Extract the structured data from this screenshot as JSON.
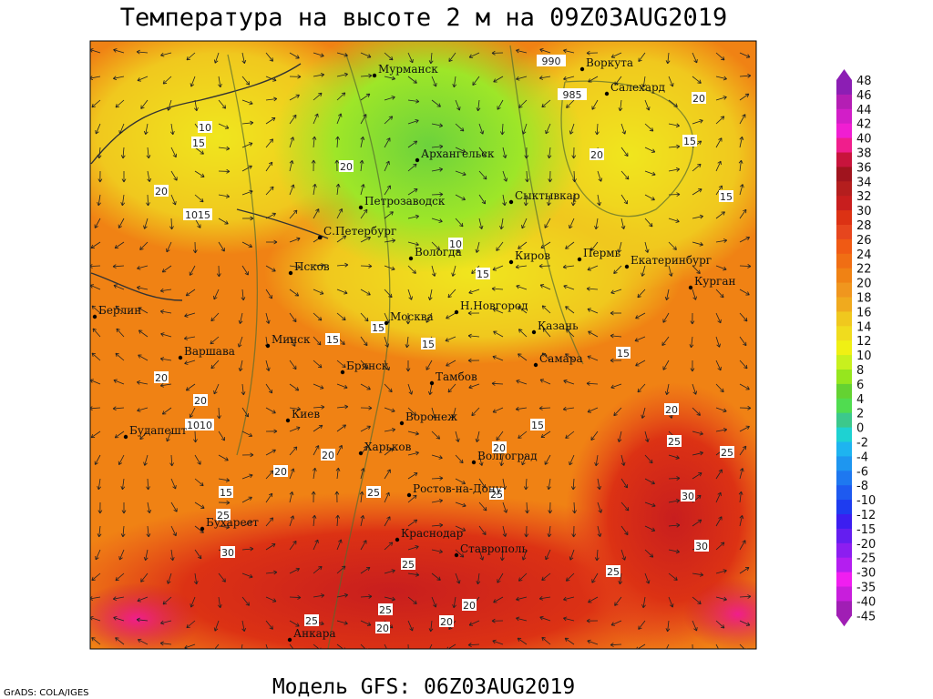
{
  "title": "Температура на высоте 2 м на 09Z03AUG2019",
  "subtitle": "Модель GFS: 06Z03AUG2019",
  "credit": "GrADS: COLA/IGES",
  "cities": [
    "Мурманск",
    "Воркута",
    "Салехард",
    "Архангельск",
    "Петрозаводск",
    "Сыктывкар",
    "С.Петербург",
    "Вологда",
    "Киров",
    "Пермь",
    "Екатеринбург",
    "Курган",
    "Псков",
    "Москва",
    "Н.Новгород",
    "Казань",
    "Берлин",
    "Варшава",
    "Минск",
    "Брянск",
    "Тамбов",
    "Самара",
    "Киев",
    "Воронеж",
    "Будапешт",
    "Харьков",
    "Волгоград",
    "Ростов-на-Дону",
    "Бухарест",
    "Краснодар",
    "Ставрополь",
    "Анкара"
  ],
  "contour_labels": [
    10,
    15,
    20,
    20,
    10,
    15,
    15,
    15,
    15,
    20,
    15,
    20,
    15,
    20,
    20,
    15,
    20,
    25,
    25,
    15,
    20,
    20,
    20,
    15,
    25,
    25,
    30,
    30,
    25,
    25,
    25,
    25,
    20,
    20,
    20,
    30,
    25
  ],
  "isobar_labels": [
    1015,
    1010,
    985,
    990
  ],
  "colorbar": {
    "levels": [
      48,
      46,
      44,
      42,
      40,
      38,
      36,
      34,
      32,
      30,
      28,
      26,
      24,
      22,
      20,
      18,
      16,
      14,
      12,
      10,
      8,
      6,
      4,
      2,
      0,
      -2,
      -4,
      -6,
      -8,
      -10,
      -12,
      -15,
      -20,
      -25,
      -30,
      -35,
      -40,
      -45
    ],
    "colors": [
      "#8c1eb4",
      "#b41eb4",
      "#d21ec8",
      "#f01ed2",
      "#f01e8c",
      "#c8143c",
      "#a0141e",
      "#b41e1e",
      "#c81e1e",
      "#dc3214",
      "#e6461e",
      "#f05a14",
      "#f06e14",
      "#f08214",
      "#f0961e",
      "#f0aa1e",
      "#f0c81e",
      "#f0dc1e",
      "#f0f014",
      "#c8f01e",
      "#96e61e",
      "#64d232",
      "#50dc50",
      "#3cc88c",
      "#1ed2d2",
      "#1eb4f0",
      "#1e96f0",
      "#1e78f0",
      "#1e5af0",
      "#1e3cf0",
      "#3c1ef0",
      "#641ef0",
      "#8c1ef0",
      "#b41ef0",
      "#f01ef0",
      "#c81edc",
      "#a01eb4"
    ]
  }
}
